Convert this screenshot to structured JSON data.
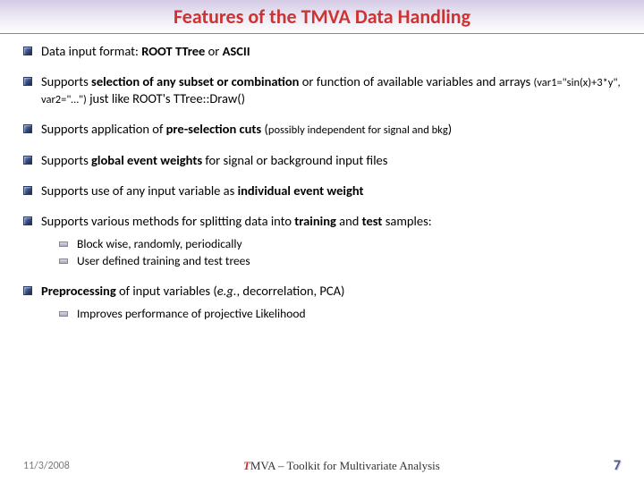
{
  "title": "Features of the TMVA Data Handling",
  "items": [
    {
      "html": "Data input format: <b>ROOT TTree</b> or <b>ASCII</b>"
    },
    {
      "html": "Supports <b>selection of any subset or combination</b> or function of available variables and arrays <span class='small'>(var1=\"sin(x)+3*y\", var2=\"…\")</span> just like ROOT's TTree::Draw()"
    },
    {
      "html": "Supports application of <b>pre-selection cuts</b> (<span class='small'>possibly independent for signal and bkg</span>)"
    },
    {
      "html": "Supports <b>global event weights</b> for signal or background input files"
    },
    {
      "html": "Supports use of any input variable as <b>individual event weight</b>"
    },
    {
      "html": "Supports various methods for splitting data into <b>training</b> and <b>test</b> samples:",
      "subs": [
        "Block wise, randomly, periodically",
        "User defined training and test trees"
      ]
    },
    {
      "html": "<b>Preprocessing</b> of input variables (<i>e.g.</i>, decorrelation, PCA)",
      "subs": [
        "Improves performance of projective Likelihood"
      ]
    }
  ],
  "footer": {
    "date": "11/3/2008",
    "center_prefix": "T",
    "center_rest": "MVA – Toolkit for Multivariate Analysis",
    "page": "7"
  },
  "colors": {
    "title": "#cc3333",
    "header_grad_top": "#d4cae6",
    "header_grad_bottom": "#ffffff",
    "bullet_dark": "#1a2644",
    "footer_page": "#4a5a9a"
  }
}
